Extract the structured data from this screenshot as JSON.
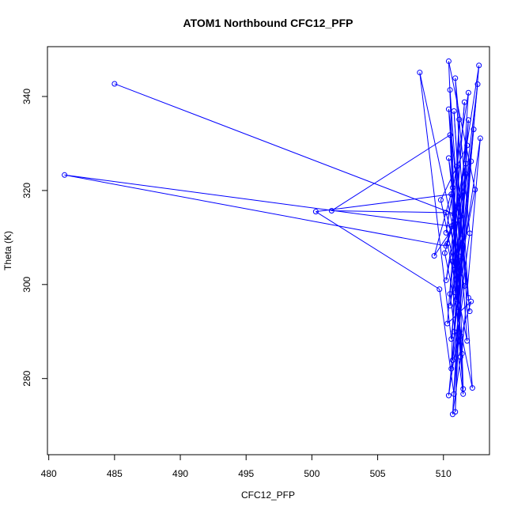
{
  "chart_data": {
    "type": "line",
    "title": "ATOM1 Northbound CFC12_PFP",
    "xlabel": "CFC12_PFP",
    "ylabel": "Theta (K)",
    "xlim": [
      479.9,
      513.5
    ],
    "ylim": [
      263.8,
      350.6
    ],
    "xticks": [
      480,
      485,
      490,
      495,
      500,
      505,
      510
    ],
    "yticks": [
      280,
      300,
      320,
      340
    ],
    "grid": false,
    "legend": "none",
    "series": [
      {
        "color": "#0000ff",
        "markers": "open-circle",
        "points": [
          [
            485.0,
            342.7
          ],
          [
            510.8,
            315.0
          ],
          [
            511.2,
            335.1
          ],
          [
            510.6,
            282.1
          ],
          [
            512.1,
            296.4
          ],
          [
            510.3,
            291.7
          ],
          [
            511.6,
            338.8
          ],
          [
            510.7,
            304.9
          ],
          [
            511.5,
            277.8
          ],
          [
            511.0,
            325.1
          ],
          [
            510.2,
            311.0
          ],
          [
            511.9,
            340.8
          ],
          [
            510.9,
            298.3
          ],
          [
            512.4,
            320.2
          ],
          [
            510.4,
            347.5
          ],
          [
            511.3,
            284.6
          ],
          [
            510.7,
            272.4
          ],
          [
            511.8,
            329.6
          ],
          [
            509.8,
            318.0
          ],
          [
            511.1,
            300.2
          ],
          [
            512.6,
            342.6
          ],
          [
            510.5,
            295.5
          ],
          [
            511.4,
            309.8
          ],
          [
            510.8,
            336.9
          ],
          [
            512.2,
            278.0
          ],
          [
            510.1,
            306.7
          ],
          [
            511.7,
            323.5
          ],
          [
            510.6,
            288.4
          ],
          [
            508.2,
            345.1
          ],
          [
            511.2,
            306.0
          ],
          [
            510.4,
            326.9
          ],
          [
            511.9,
            297.2
          ],
          [
            510.9,
            343.9
          ],
          [
            512.0,
            310.9
          ],
          [
            510.7,
            283.9
          ],
          [
            511.5,
            319.6
          ],
          [
            510.2,
            300.9
          ],
          [
            512.7,
            346.6
          ],
          [
            511.1,
            294.2
          ],
          [
            510.5,
            331.8
          ],
          [
            501.5,
            315.7
          ],
          [
            510.2,
            315.3
          ],
          [
            511.6,
            299.7
          ],
          [
            510.4,
            276.4
          ],
          [
            512.3,
            333.0
          ],
          [
            510.9,
            304.0
          ],
          [
            511.3,
            289.1
          ],
          [
            510.6,
            319.2
          ],
          [
            500.3,
            315.5
          ],
          [
            509.7,
            299.0
          ],
          [
            510.8,
            276.7
          ],
          [
            512.1,
            326.2
          ],
          [
            510.3,
            308.7
          ],
          [
            511.8,
            288.0
          ],
          [
            510.5,
            341.4
          ],
          [
            511.0,
            296.8
          ],
          [
            512.8,
            331.1
          ],
          [
            511.4,
            285.3
          ],
          [
            510.6,
            312.4
          ],
          [
            481.2,
            323.3
          ],
          [
            510.2,
            308.2
          ],
          [
            511.7,
            325.7
          ],
          [
            510.9,
            272.9
          ],
          [
            511.2,
            302.6
          ],
          [
            510.4,
            337.3
          ],
          [
            512.0,
            294.3
          ],
          [
            511.3,
            314.5
          ],
          [
            509.3,
            306.1
          ],
          [
            510.7,
            320.6
          ],
          [
            511.5,
            276.7
          ],
          [
            510.5,
            298.0
          ],
          [
            511.9,
            335.0
          ],
          [
            510.8,
            290.0
          ]
        ]
      }
    ]
  }
}
